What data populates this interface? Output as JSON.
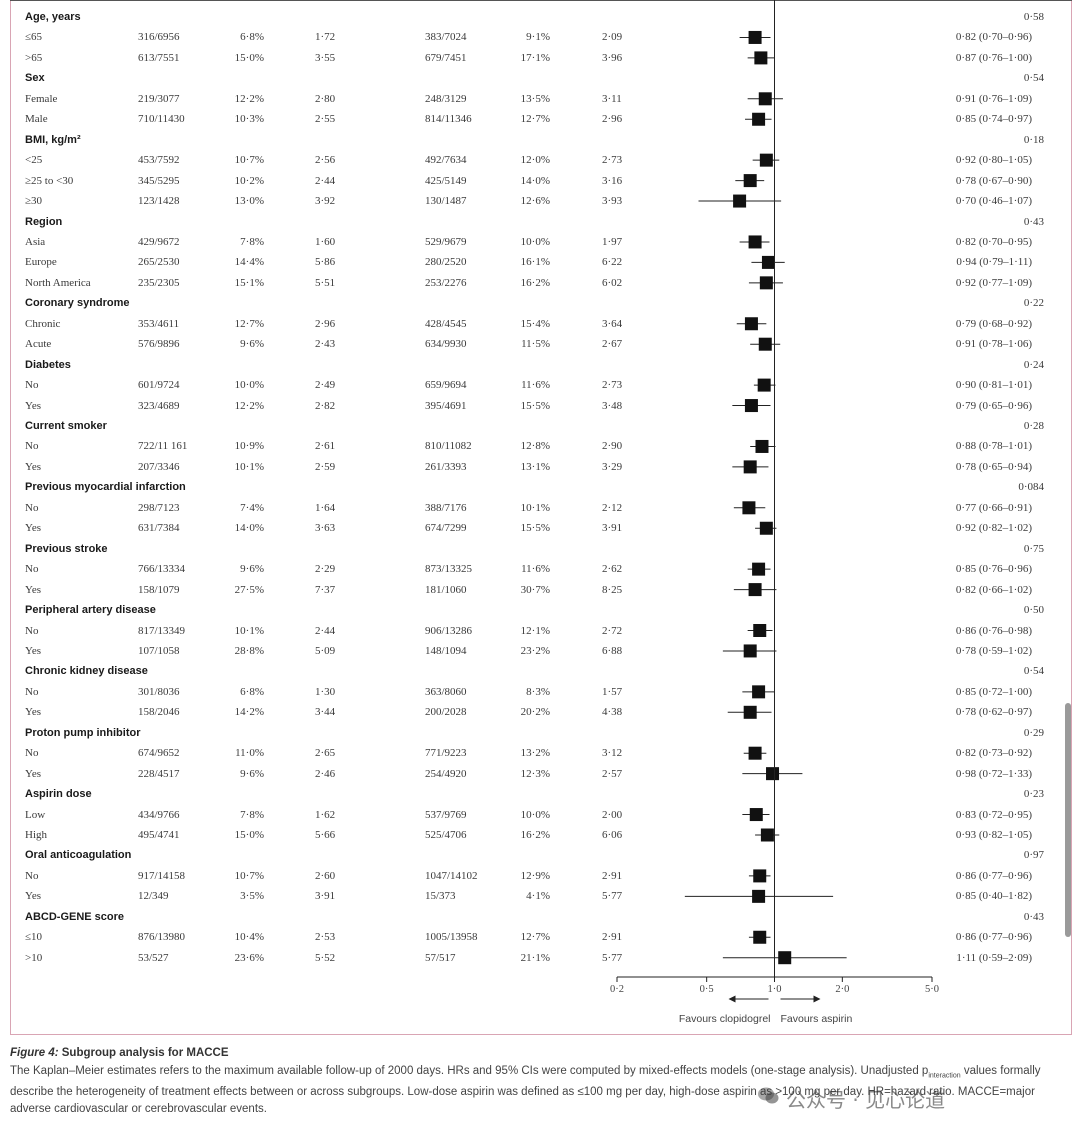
{
  "chart_data": {
    "type": "forest",
    "x_scale": "log",
    "xlim": [
      0.2,
      5.0
    ],
    "reference_line": 1.0,
    "x_ticks": [
      "0·2",
      "0·5",
      "1·0",
      "2·0",
      "5·0"
    ],
    "x_tick_values": [
      0.2,
      0.5,
      1.0,
      2.0,
      5.0
    ],
    "favours_left": "Favours clopidogrel",
    "favours_right": "Favours aspirin",
    "groups": [
      {
        "label": "Age, years",
        "p": "0·58",
        "rows": [
          {
            "label": "≤65",
            "c1": "316/6956",
            "c2": "6·8%",
            "c3": "1·72",
            "c4": "383/7024",
            "c5": "9·1%",
            "c6": "2·09",
            "hr": 0.82,
            "lo": 0.7,
            "hi": 0.96,
            "hr_text": "0·82 (0·70–0·96)"
          },
          {
            "label": ">65",
            "c1": "613/7551",
            "c2": "15·0%",
            "c3": "3·55",
            "c4": "679/7451",
            "c5": "17·1%",
            "c6": "3·96",
            "hr": 0.87,
            "lo": 0.76,
            "hi": 1.0,
            "hr_text": "0·87 (0·76–1·00)"
          }
        ]
      },
      {
        "label": "Sex",
        "p": "0·54",
        "rows": [
          {
            "label": "Female",
            "c1": "219/3077",
            "c2": "12·2%",
            "c3": "2·80",
            "c4": "248/3129",
            "c5": "13·5%",
            "c6": "3·11",
            "hr": 0.91,
            "lo": 0.76,
            "hi": 1.09,
            "hr_text": "0·91 (0·76–1·09)"
          },
          {
            "label": "Male",
            "c1": "710/11430",
            "c2": "10·3%",
            "c3": "2·55",
            "c4": "814/11346",
            "c5": "12·7%",
            "c6": "2·96",
            "hr": 0.85,
            "lo": 0.74,
            "hi": 0.97,
            "hr_text": "0·85 (0·74–0·97)"
          }
        ]
      },
      {
        "label": "BMI, kg/m²",
        "p": "0·18",
        "rows": [
          {
            "label": "<25",
            "c1": "453/7592",
            "c2": "10·7%",
            "c3": "2·56",
            "c4": "492/7634",
            "c5": "12·0%",
            "c6": "2·73",
            "hr": 0.92,
            "lo": 0.8,
            "hi": 1.05,
            "hr_text": "0·92 (0·80–1·05)"
          },
          {
            "label": "≥25 to <30",
            "c1": "345/5295",
            "c2": "10·2%",
            "c3": "2·44",
            "c4": "425/5149",
            "c5": "14·0%",
            "c6": "3·16",
            "hr": 0.78,
            "lo": 0.67,
            "hi": 0.9,
            "hr_text": "0·78 (0·67–0·90)"
          },
          {
            "label": "≥30",
            "c1": "123/1428",
            "c2": "13·0%",
            "c3": "3·92",
            "c4": "130/1487",
            "c5": "12·6%",
            "c6": "3·93",
            "hr": 0.7,
            "lo": 0.46,
            "hi": 1.07,
            "hr_text": "0·70 (0·46–1·07)"
          }
        ]
      },
      {
        "label": "Region",
        "p": "0·43",
        "rows": [
          {
            "label": "Asia",
            "c1": "429/9672",
            "c2": "7·8%",
            "c3": "1·60",
            "c4": "529/9679",
            "c5": "10·0%",
            "c6": "1·97",
            "hr": 0.82,
            "lo": 0.7,
            "hi": 0.95,
            "hr_text": "0·82 (0·70–0·95)"
          },
          {
            "label": "Europe",
            "c1": "265/2530",
            "c2": "14·4%",
            "c3": "5·86",
            "c4": "280/2520",
            "c5": "16·1%",
            "c6": "6·22",
            "hr": 0.94,
            "lo": 0.79,
            "hi": 1.11,
            "hr_text": "0·94 (0·79–1·11)"
          },
          {
            "label": "North America",
            "c1": "235/2305",
            "c2": "15·1%",
            "c3": "5·51",
            "c4": "253/2276",
            "c5": "16·2%",
            "c6": "6·02",
            "hr": 0.92,
            "lo": 0.77,
            "hi": 1.09,
            "hr_text": "0·92 (0·77–1·09)"
          }
        ]
      },
      {
        "label": "Coronary syndrome",
        "p": "0·22",
        "rows": [
          {
            "label": "Chronic",
            "c1": "353/4611",
            "c2": "12·7%",
            "c3": "2·96",
            "c4": "428/4545",
            "c5": "15·4%",
            "c6": "3·64",
            "hr": 0.79,
            "lo": 0.68,
            "hi": 0.92,
            "hr_text": "0·79 (0·68–0·92)"
          },
          {
            "label": "Acute",
            "c1": "576/9896",
            "c2": "9·6%",
            "c3": "2·43",
            "c4": "634/9930",
            "c5": "11·5%",
            "c6": "2·67",
            "hr": 0.91,
            "lo": 0.78,
            "hi": 1.06,
            "hr_text": "0·91 (0·78–1·06)"
          }
        ]
      },
      {
        "label": "Diabetes",
        "p": "0·24",
        "rows": [
          {
            "label": "No",
            "c1": "601/9724",
            "c2": "10·0%",
            "c3": "2·49",
            "c4": "659/9694",
            "c5": "11·6%",
            "c6": "2·73",
            "hr": 0.9,
            "lo": 0.81,
            "hi": 1.01,
            "hr_text": "0·90 (0·81–1·01)"
          },
          {
            "label": "Yes",
            "c1": "323/4689",
            "c2": "12·2%",
            "c3": "2·82",
            "c4": "395/4691",
            "c5": "15·5%",
            "c6": "3·48",
            "hr": 0.79,
            "lo": 0.65,
            "hi": 0.96,
            "hr_text": "0·79 (0·65–0·96)"
          }
        ]
      },
      {
        "label": "Current smoker",
        "p": "0·28",
        "rows": [
          {
            "label": "No",
            "c1": "722/11 161",
            "c2": "10·9%",
            "c3": "2·61",
            "c4": "810/11082",
            "c5": "12·8%",
            "c6": "2·90",
            "hr": 0.88,
            "lo": 0.78,
            "hi": 1.01,
            "hr_text": "0·88 (0·78–1·01)"
          },
          {
            "label": "Yes",
            "c1": "207/3346",
            "c2": "10·1%",
            "c3": "2·59",
            "c4": "261/3393",
            "c5": "13·1%",
            "c6": "3·29",
            "hr": 0.78,
            "lo": 0.65,
            "hi": 0.94,
            "hr_text": "0·78 (0·65–0·94)"
          }
        ]
      },
      {
        "label": "Previous myocardial infarction",
        "p": "0·084",
        "rows": [
          {
            "label": "No",
            "c1": "298/7123",
            "c2": "7·4%",
            "c3": "1·64",
            "c4": "388/7176",
            "c5": "10·1%",
            "c6": "2·12",
            "hr": 0.77,
            "lo": 0.66,
            "hi": 0.91,
            "hr_text": "0·77 (0·66–0·91)"
          },
          {
            "label": "Yes",
            "c1": "631/7384",
            "c2": "14·0%",
            "c3": "3·63",
            "c4": "674/7299",
            "c5": "15·5%",
            "c6": "3·91",
            "hr": 0.92,
            "lo": 0.82,
            "hi": 1.02,
            "hr_text": "0·92 (0·82–1·02)"
          }
        ]
      },
      {
        "label": "Previous stroke",
        "p": "0·75",
        "rows": [
          {
            "label": "No",
            "c1": "766/13334",
            "c2": "9·6%",
            "c3": "2·29",
            "c4": "873/13325",
            "c5": "11·6%",
            "c6": "2·62",
            "hr": 0.85,
            "lo": 0.76,
            "hi": 0.96,
            "hr_text": "0·85 (0·76–0·96)"
          },
          {
            "label": "Yes",
            "c1": "158/1079",
            "c2": "27·5%",
            "c3": "7·37",
            "c4": "181/1060",
            "c5": "30·7%",
            "c6": "8·25",
            "hr": 0.82,
            "lo": 0.66,
            "hi": 1.02,
            "hr_text": "0·82 (0·66–1·02)"
          }
        ]
      },
      {
        "label": "Peripheral artery disease",
        "p": "0·50",
        "rows": [
          {
            "label": "No",
            "c1": "817/13349",
            "c2": "10·1%",
            "c3": "2·44",
            "c4": "906/13286",
            "c5": "12·1%",
            "c6": "2·72",
            "hr": 0.86,
            "lo": 0.76,
            "hi": 0.98,
            "hr_text": "0·86 (0·76–0·98)"
          },
          {
            "label": "Yes",
            "c1": "107/1058",
            "c2": "28·8%",
            "c3": "5·09",
            "c4": "148/1094",
            "c5": "23·2%",
            "c6": "6·88",
            "hr": 0.78,
            "lo": 0.59,
            "hi": 1.02,
            "hr_text": "0·78 (0·59–1·02)"
          }
        ]
      },
      {
        "label": "Chronic kidney disease",
        "p": "0·54",
        "rows": [
          {
            "label": "No",
            "c1": "301/8036",
            "c2": "6·8%",
            "c3": "1·30",
            "c4": "363/8060",
            "c5": "8·3%",
            "c6": "1·57",
            "hr": 0.85,
            "lo": 0.72,
            "hi": 1.0,
            "hr_text": "0·85 (0·72–1·00)"
          },
          {
            "label": "Yes",
            "c1": "158/2046",
            "c2": "14·2%",
            "c3": "3·44",
            "c4": "200/2028",
            "c5": "20·2%",
            "c6": "4·38",
            "hr": 0.78,
            "lo": 0.62,
            "hi": 0.97,
            "hr_text": "0·78 (0·62–0·97)"
          }
        ]
      },
      {
        "label": "Proton pump inhibitor",
        "p": "0·29",
        "rows": [
          {
            "label": "No",
            "c1": "674/9652",
            "c2": "11·0%",
            "c3": "2·65",
            "c4": "771/9223",
            "c5": "13·2%",
            "c6": "3·12",
            "hr": 0.82,
            "lo": 0.73,
            "hi": 0.92,
            "hr_text": "0·82 (0·73–0·92)"
          },
          {
            "label": "Yes",
            "c1": "228/4517",
            "c2": "9·6%",
            "c3": "2·46",
            "c4": "254/4920",
            "c5": "12·3%",
            "c6": "2·57",
            "hr": 0.98,
            "lo": 0.72,
            "hi": 1.33,
            "hr_text": "0·98 (0·72–1·33)"
          }
        ]
      },
      {
        "label": "Aspirin dose",
        "p": "0·23",
        "rows": [
          {
            "label": "Low",
            "c1": "434/9766",
            "c2": "7·8%",
            "c3": "1·62",
            "c4": "537/9769",
            "c5": "10·0%",
            "c6": "2·00",
            "hr": 0.83,
            "lo": 0.72,
            "hi": 0.95,
            "hr_text": "0·83 (0·72–0·95)"
          },
          {
            "label": "High",
            "c1": "495/4741",
            "c2": "15·0%",
            "c3": "5·66",
            "c4": "525/4706",
            "c5": "16·2%",
            "c6": "6·06",
            "hr": 0.93,
            "lo": 0.82,
            "hi": 1.05,
            "hr_text": "0·93 (0·82–1·05)"
          }
        ]
      },
      {
        "label": "Oral anticoagulation",
        "p": "0·97",
        "rows": [
          {
            "label": "No",
            "c1": "917/14158",
            "c2": "10·7%",
            "c3": "2·60",
            "c4": "1047/14102",
            "c5": "12·9%",
            "c6": "2·91",
            "hr": 0.86,
            "lo": 0.77,
            "hi": 0.96,
            "hr_text": "0·86 (0·77–0·96)"
          },
          {
            "label": "Yes",
            "c1": "12/349",
            "c2": "3·5%",
            "c3": "3·91",
            "c4": "15/373",
            "c5": "4·1%",
            "c6": "5·77",
            "hr": 0.85,
            "lo": 0.4,
            "hi": 1.82,
            "hr_text": "0·85 (0·40–1·82)"
          }
        ]
      },
      {
        "label": "ABCD-GENE score",
        "p": "0·43",
        "rows": [
          {
            "label": "≤10",
            "c1": "876/13980",
            "c2": "10·4%",
            "c3": "2·53",
            "c4": "1005/13958",
            "c5": "12·7%",
            "c6": "2·91",
            "hr": 0.86,
            "lo": 0.77,
            "hi": 0.96,
            "hr_text": "0·86 (0·77–0·96)"
          },
          {
            "label": ">10",
            "c1": "53/527",
            "c2": "23·6%",
            "c3": "5·52",
            "c4": "57/517",
            "c5": "21·1%",
            "c6": "5·77",
            "hr": 1.11,
            "lo": 0.59,
            "hi": 2.09,
            "hr_text": "1·11 (0·59–2·09)"
          }
        ]
      }
    ]
  },
  "caption": {
    "figure_label": "Figure 4:",
    "title": "Subgroup analysis for MACCE",
    "text_before_sub": "The Kaplan–Meier estimates refers to the maximum available follow-up of 2000 days. HRs and 95% CIs were computed by mixed-effects models (one-stage analysis). Unadjusted p",
    "subscript": "interaction",
    "text_after_sub": " values formally describe the heterogeneity of treatment effects between or across subgroups. Low-dose aspirin was defined as ≤100 mg per day, high-dose aspirin as >100 mg per day. HR=hazard ratio. MACCE=major adverse cardiovascular or cerebrovascular events."
  },
  "watermark": {
    "text": "公众号 · 见心论道"
  },
  "colors": {
    "frame": "#d9a5b4",
    "marker": "#111111",
    "text": "#3a3a3a"
  }
}
